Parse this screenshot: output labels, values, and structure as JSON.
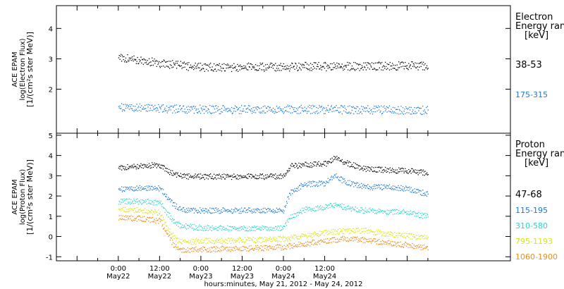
{
  "chart_data": [
    {
      "type": "scatter",
      "panel": "electron",
      "ylabel_lines": [
        "ACE EPAM",
        "log(Electron Flux)",
        "[1/(cm²s ster MeV)]"
      ],
      "legend_title_lines": [
        "Electron",
        "Energy ranges",
        "[keV]"
      ],
      "ylim": [
        0.55,
        4.75
      ],
      "yticks": [
        2,
        3,
        4
      ],
      "series": [
        {
          "name": "38-53",
          "color": "#000000",
          "x": [
            0,
            4,
            8,
            12,
            16,
            20,
            24,
            30,
            36,
            42,
            48,
            54,
            60,
            66,
            72,
            78,
            84,
            90
          ],
          "values": [
            3.05,
            3.0,
            2.93,
            2.87,
            2.82,
            2.77,
            2.74,
            2.73,
            2.74,
            2.74,
            2.75,
            2.76,
            2.76,
            2.76,
            2.77,
            2.77,
            2.78,
            2.77
          ]
        },
        {
          "name": "175-315",
          "color": "#1e78d2",
          "x": [
            0,
            6,
            12,
            18,
            24,
            30,
            36,
            42,
            48,
            54,
            60,
            66,
            72,
            78,
            84,
            90
          ],
          "values": [
            1.42,
            1.4,
            1.38,
            1.36,
            1.35,
            1.34,
            1.34,
            1.34,
            1.35,
            1.35,
            1.34,
            1.34,
            1.33,
            1.33,
            1.33,
            1.32
          ]
        }
      ]
    },
    {
      "type": "scatter",
      "panel": "proton",
      "ylabel_lines": [
        "ACE EPAM",
        "log(Proton Flux)",
        "[1/(cm²s ster MeV)]"
      ],
      "legend_title_lines": [
        "Proton",
        "Energy ranges",
        "[keV]"
      ],
      "ylim": [
        -1.2,
        5.1
      ],
      "yticks": [
        -1,
        0,
        1,
        2,
        3,
        4,
        5
      ],
      "series": [
        {
          "name": "47-68",
          "color": "#000000",
          "x": [
            0,
            6,
            12,
            14,
            16,
            18,
            24,
            30,
            36,
            42,
            48,
            50,
            54,
            60,
            63,
            66,
            70,
            72,
            78,
            84,
            90
          ],
          "values": [
            3.4,
            3.5,
            3.55,
            3.3,
            3.1,
            3.0,
            2.98,
            2.98,
            2.98,
            2.98,
            3.0,
            3.5,
            3.55,
            3.6,
            3.9,
            3.65,
            3.45,
            3.35,
            3.3,
            3.25,
            3.15
          ]
        },
        {
          "name": "115-195",
          "color": "#1e78d2",
          "x": [
            0,
            6,
            12,
            14,
            16,
            18,
            24,
            30,
            36,
            42,
            48,
            50,
            54,
            60,
            63,
            66,
            70,
            72,
            78,
            84,
            90
          ],
          "values": [
            2.35,
            2.4,
            2.4,
            2.0,
            1.6,
            1.35,
            1.3,
            1.3,
            1.3,
            1.3,
            1.32,
            2.2,
            2.6,
            2.65,
            3.0,
            2.7,
            2.55,
            2.45,
            2.45,
            2.4,
            2.1
          ]
        },
        {
          "name": "310-580",
          "color": "#2ad4c8",
          "x": [
            0,
            6,
            12,
            14,
            16,
            18,
            24,
            30,
            36,
            42,
            48,
            50,
            54,
            60,
            63,
            66,
            70,
            72,
            78,
            84,
            90
          ],
          "values": [
            1.75,
            1.75,
            1.7,
            1.2,
            0.8,
            0.55,
            0.45,
            0.42,
            0.42,
            0.42,
            0.45,
            1.0,
            1.35,
            1.45,
            1.6,
            1.45,
            1.3,
            1.3,
            1.25,
            1.2,
            1.0
          ]
        },
        {
          "name": "795-1193",
          "color": "#d6e614",
          "x": [
            0,
            6,
            12,
            14,
            16,
            18,
            24,
            30,
            36,
            42,
            48,
            50,
            54,
            60,
            66,
            72,
            78,
            84,
            90
          ],
          "values": [
            1.35,
            1.3,
            1.2,
            0.5,
            0.0,
            -0.25,
            -0.2,
            -0.2,
            -0.15,
            -0.15,
            -0.1,
            -0.05,
            0.05,
            0.2,
            0.3,
            0.3,
            0.15,
            0.05,
            -0.05
          ]
        },
        {
          "name": "1060-1900",
          "color": "#f08c18",
          "x": [
            0,
            6,
            12,
            14,
            16,
            18,
            24,
            30,
            36,
            42,
            48,
            50,
            54,
            60,
            66,
            72,
            78,
            84,
            90
          ],
          "values": [
            0.95,
            0.9,
            0.8,
            0.2,
            -0.4,
            -0.65,
            -0.62,
            -0.6,
            -0.58,
            -0.55,
            -0.5,
            -0.45,
            -0.35,
            -0.2,
            -0.1,
            -0.15,
            -0.3,
            -0.4,
            -0.55
          ]
        }
      ]
    }
  ],
  "x_axis": {
    "range_hours": [
      -18,
      114
    ],
    "ticks": [
      {
        "h": 0,
        "time": "0:00",
        "date": "May22"
      },
      {
        "h": 12,
        "time": "12:00",
        "date": "May22"
      },
      {
        "h": 24,
        "time": "0:00",
        "date": "May23"
      },
      {
        "h": 36,
        "time": "12:00",
        "date": "May23"
      },
      {
        "h": 48,
        "time": "0:00",
        "date": "May24"
      },
      {
        "h": 60,
        "time": "12:00",
        "date": "May24"
      }
    ],
    "xlabel": "hours:minutes, May 21, 2012 - May 24, 2012"
  }
}
